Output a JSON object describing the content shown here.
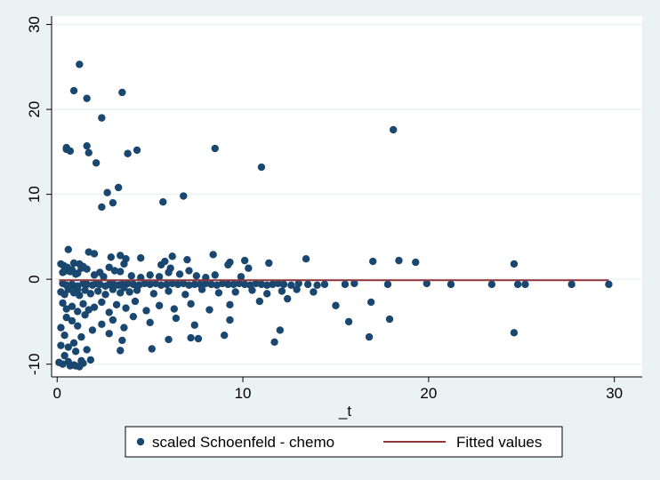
{
  "chart_data": {
    "type": "scatter",
    "xlabel": "_t",
    "ylabel": "",
    "xlim": [
      -0.3,
      31.5
    ],
    "ylim": [
      -11.5,
      31
    ],
    "xticks": [
      0,
      10,
      20,
      30
    ],
    "yticks": [
      -10,
      0,
      10,
      20,
      30
    ],
    "grid": true,
    "legend_position": "bottom",
    "colors": {
      "points": "#1a476f",
      "fitted": "#90353b",
      "plot_bg": "#ffffff",
      "outer_bg": "#eaf2f3",
      "grid": "#eaf2f3"
    },
    "series": [
      {
        "name": "scaled Schoenfeld - chemo",
        "kind": "scatter",
        "x": [
          0.5,
          1.2,
          0.9,
          1.6,
          3.5,
          2.4,
          0.5,
          0.7,
          1.6,
          1.7,
          4.3,
          3.8,
          2.1,
          8.5,
          18.1,
          11.0,
          3.3,
          2.7,
          3.0,
          2.4,
          6.8,
          5.7,
          0.5,
          0.6,
          0.3,
          0.4,
          0.7,
          0.8,
          1.1,
          1.3,
          0.2,
          0.35,
          0.55,
          0.9,
          1.0,
          1.2,
          1.4,
          1.6,
          2.0,
          2.3,
          2.5,
          2.8,
          3.1,
          3.4,
          3.6,
          4.0,
          4.5,
          5.0,
          5.6,
          6.1,
          6.6,
          7.1,
          7.5,
          8.0,
          8.5,
          9.2,
          9.9,
          10.3,
          5.5,
          6.0,
          0.3,
          0.5,
          0.8,
          1.1,
          1.4,
          1.6,
          1.9,
          2.1,
          2.3,
          2.6,
          2.8,
          3.0,
          3.3,
          3.5,
          3.8,
          4.1,
          4.4,
          4.7,
          5.0,
          5.3,
          5.6,
          5.9,
          6.2,
          6.5,
          6.8,
          7.1,
          7.4,
          7.7,
          8.0,
          8.3,
          8.6,
          8.9,
          9.2,
          9.5,
          9.8,
          10.1,
          10.4,
          10.7,
          11.0,
          11.3,
          11.6,
          11.9,
          12.2,
          12.6,
          13.0,
          13.5,
          14.0,
          14.4,
          15.5,
          16.0,
          17.8,
          19.9,
          21.2,
          23.4,
          24.8,
          25.2,
          27.7,
          29.7,
          0.2,
          0.4,
          0.6,
          0.9,
          1.2,
          1.5,
          1.8,
          2.2,
          2.6,
          3.0,
          3.4,
          3.9,
          4.3,
          5.2,
          6.0,
          6.9,
          7.8,
          8.7,
          9.6,
          10.5,
          11.3,
          12.1,
          12.9,
          13.8,
          0.3,
          0.5,
          0.8,
          1.1,
          1.4,
          1.7,
          2.0,
          2.4,
          2.8,
          3.2,
          3.7,
          4.2,
          4.8,
          5.5,
          6.3,
          7.2,
          8.2,
          9.3,
          10.9,
          12.4,
          15.0,
          16.9,
          0.2,
          0.5,
          0.8,
          1.1,
          1.5,
          1.9,
          2.4,
          3.0,
          3.6,
          4.1,
          5.0,
          6.4,
          7.4,
          9.3,
          12.0,
          15.7,
          16.8,
          17.9,
          0.4,
          0.9,
          1.3,
          2.8,
          3.5,
          5.1,
          7.6,
          9.0,
          11.7,
          24.6,
          0.2,
          0.6,
          1.0,
          1.6,
          3.4,
          6.0,
          7.2,
          0.1,
          0.9,
          1.8,
          0.7,
          1.3,
          0.4,
          1.2,
          0.6,
          1.4,
          0.3,
          1.0,
          18.4,
          0.6,
          1.7,
          2.0,
          2.9,
          3.4,
          3.7,
          4.5,
          5.8,
          6.2,
          7.0,
          8.4,
          9.3,
          10.1,
          11.4,
          13.4,
          17.0,
          19.3,
          24.6,
          0.9,
          1.1,
          3.6
        ],
        "y": [
          15.5,
          25.3,
          22.2,
          21.3,
          22.0,
          19.0,
          15.3,
          15.1,
          15.7,
          14.9,
          15.2,
          14.8,
          13.7,
          15.4,
          17.6,
          13.2,
          10.8,
          10.2,
          9.0,
          8.5,
          9.8,
          9.1,
          1.0,
          1.2,
          0.8,
          1.5,
          0.9,
          1.1,
          0.7,
          1.3,
          1.8,
          1.6,
          1.4,
          1.9,
          0.6,
          1.8,
          1.5,
          1.2,
          0.5,
          0.8,
          0.3,
          1.4,
          1.0,
          0.9,
          1.8,
          0.4,
          0.2,
          0.5,
          1.7,
          1.3,
          0.6,
          1.0,
          0.4,
          0.2,
          0.5,
          1.7,
          0.3,
          1.3,
          0.3,
          0.8,
          -0.5,
          -0.7,
          -0.6,
          -0.8,
          -0.5,
          -0.6,
          -0.7,
          -0.5,
          -0.6,
          -0.8,
          -0.6,
          -0.5,
          -0.7,
          -0.6,
          -0.5,
          -0.6,
          -0.7,
          -0.5,
          -0.6,
          -0.5,
          -0.7,
          -0.6,
          -0.5,
          -0.6,
          -0.5,
          -0.7,
          -0.6,
          -0.6,
          -0.5,
          -0.6,
          -0.7,
          -0.5,
          -0.6,
          -0.6,
          -0.5,
          -0.6,
          -0.7,
          -0.5,
          -0.6,
          -0.7,
          -0.6,
          -0.5,
          -0.6,
          -0.7,
          -0.5,
          -0.6,
          -0.7,
          -0.6,
          -0.6,
          -0.5,
          -0.6,
          -0.5,
          -0.6,
          -0.6,
          -0.6,
          -0.6,
          -0.6,
          -0.6,
          -1.5,
          -1.8,
          -1.2,
          -1.6,
          -1.9,
          -1.3,
          -1.7,
          -1.4,
          -1.8,
          -1.2,
          -1.6,
          -1.5,
          -1.3,
          -1.7,
          -1.4,
          -1.8,
          -1.2,
          -1.6,
          -1.5,
          -1.3,
          -1.7,
          -1.4,
          -1.2,
          -1.5,
          -2.8,
          -3.5,
          -3.2,
          -3.8,
          -2.9,
          -3.6,
          -3.3,
          -2.7,
          -3.9,
          -3.0,
          -3.4,
          -2.6,
          -3.7,
          -3.1,
          -3.5,
          -2.9,
          -3.6,
          -3.0,
          -2.6,
          -2.3,
          -3.1,
          -2.7,
          -5.7,
          -4.5,
          -4.9,
          -5.5,
          -4.2,
          -6.0,
          -5.3,
          -4.8,
          -5.7,
          -4.4,
          -5.1,
          -4.6,
          -5.4,
          -4.8,
          -6.0,
          -5.0,
          -6.8,
          -4.7,
          -6.6,
          -7.5,
          -6.8,
          -6.4,
          -7.2,
          -8.2,
          -7.0,
          -6.6,
          -7.4,
          -6.3,
          -7.8,
          -8.0,
          -8.5,
          -8.3,
          -8.4,
          -7.1,
          -6.9,
          -9.8,
          -10.1,
          -9.5,
          -10.2,
          -9.6,
          -9.0,
          -10.3,
          -9.7,
          -9.9,
          -10.0,
          -10.2,
          2.2,
          3.5,
          3.2,
          3.0,
          2.6,
          2.8,
          2.4,
          2.5,
          2.1,
          2.7,
          2.3,
          2.9,
          2.0,
          2.2,
          1.9,
          2.4,
          2.1,
          2.0,
          1.8,
          -0.8,
          -1.2,
          -1.0
        ]
      },
      {
        "name": "Fitted values",
        "kind": "line",
        "x": [
          0.1,
          29.7
        ],
        "y": [
          -0.12,
          -0.12
        ]
      }
    ]
  }
}
